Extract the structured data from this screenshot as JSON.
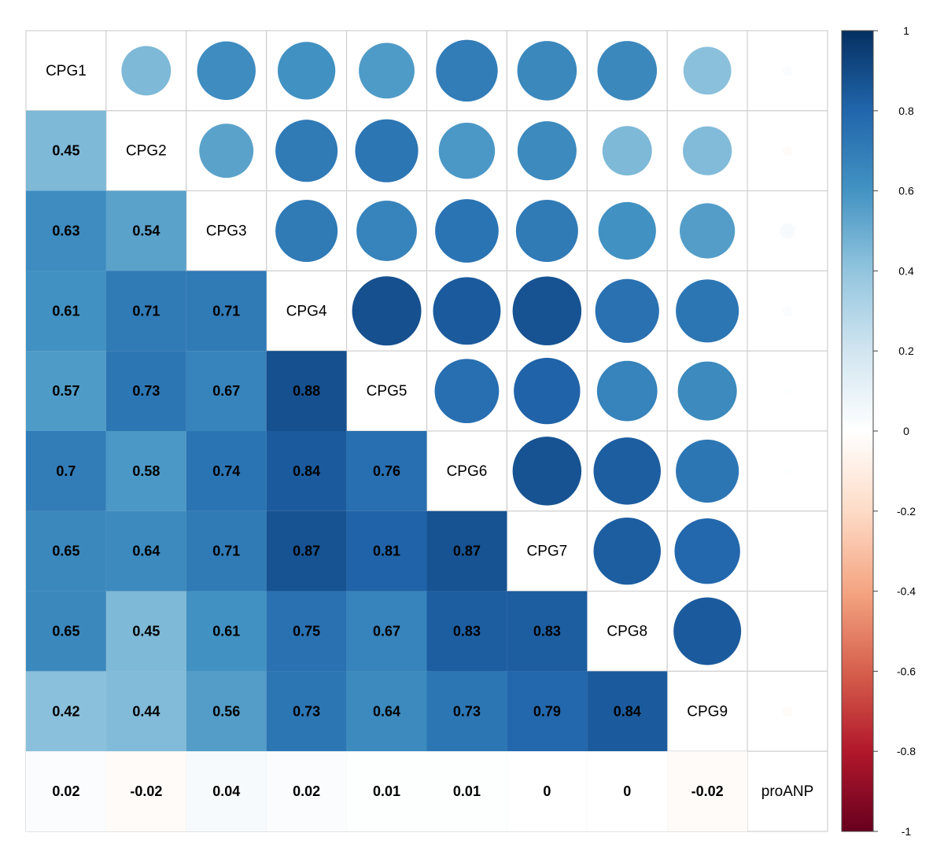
{
  "chart_data": {
    "type": "heatmap",
    "title": "",
    "variables": [
      "CPG1",
      "CPG2",
      "CPG3",
      "CPG4",
      "CPG5",
      "CPG6",
      "CPG7",
      "CPG8",
      "CPG9",
      "proANP"
    ],
    "lower_matrix": [
      [],
      [
        0.45
      ],
      [
        0.63,
        0.54
      ],
      [
        0.61,
        0.71,
        0.71
      ],
      [
        0.57,
        0.73,
        0.67,
        0.88
      ],
      [
        0.7,
        0.58,
        0.74,
        0.84,
        0.76
      ],
      [
        0.65,
        0.64,
        0.71,
        0.87,
        0.81,
        0.87
      ],
      [
        0.65,
        0.45,
        0.61,
        0.75,
        0.67,
        0.83,
        0.83
      ],
      [
        0.42,
        0.44,
        0.56,
        0.73,
        0.64,
        0.73,
        0.79,
        0.84
      ],
      [
        0.02,
        -0.02,
        0.04,
        0.02,
        0.01,
        0.01,
        0,
        0,
        -0.02
      ]
    ],
    "lower_labels": [
      [],
      [
        "0.45"
      ],
      [
        "0.63",
        "0.54"
      ],
      [
        "0.61",
        "0.71",
        "0.71"
      ],
      [
        "0.57",
        "0.73",
        "0.67",
        "0.88"
      ],
      [
        "0.7",
        "0.58",
        "0.74",
        "0.84",
        "0.76"
      ],
      [
        "0.65",
        "0.64",
        "0.71",
        "0.87",
        "0.81",
        "0.87"
      ],
      [
        "0.65",
        "0.45",
        "0.61",
        "0.75",
        "0.67",
        "0.83",
        "0.83"
      ],
      [
        "0.42",
        "0.44",
        "0.56",
        "0.73",
        "0.64",
        "0.73",
        "0.79",
        "0.84"
      ],
      [
        "0.02",
        "-0.02",
        "0.04",
        "0.02",
        "0.01",
        "0.01",
        "0",
        "0",
        "-0.02"
      ]
    ],
    "upper_display": "circle",
    "lower_display": "number-shade",
    "colorbar": {
      "range": [
        -1,
        1
      ],
      "ticks": [
        "1",
        "0.8",
        "0.6",
        "0.4",
        "0.2",
        "0",
        "-0.2",
        "-0.4",
        "-0.6",
        "-0.8",
        "-1"
      ],
      "tick_values": [
        1,
        0.8,
        0.6,
        0.4,
        0.2,
        0,
        -0.2,
        -0.4,
        -0.6,
        -0.8,
        -1
      ],
      "palette": [
        "#67001F",
        "#B2182B",
        "#D6604D",
        "#F4A582",
        "#FDDBC7",
        "#FFFFFF",
        "#D1E5F0",
        "#92C5DE",
        "#4393C3",
        "#2166AC",
        "#053061"
      ]
    }
  }
}
